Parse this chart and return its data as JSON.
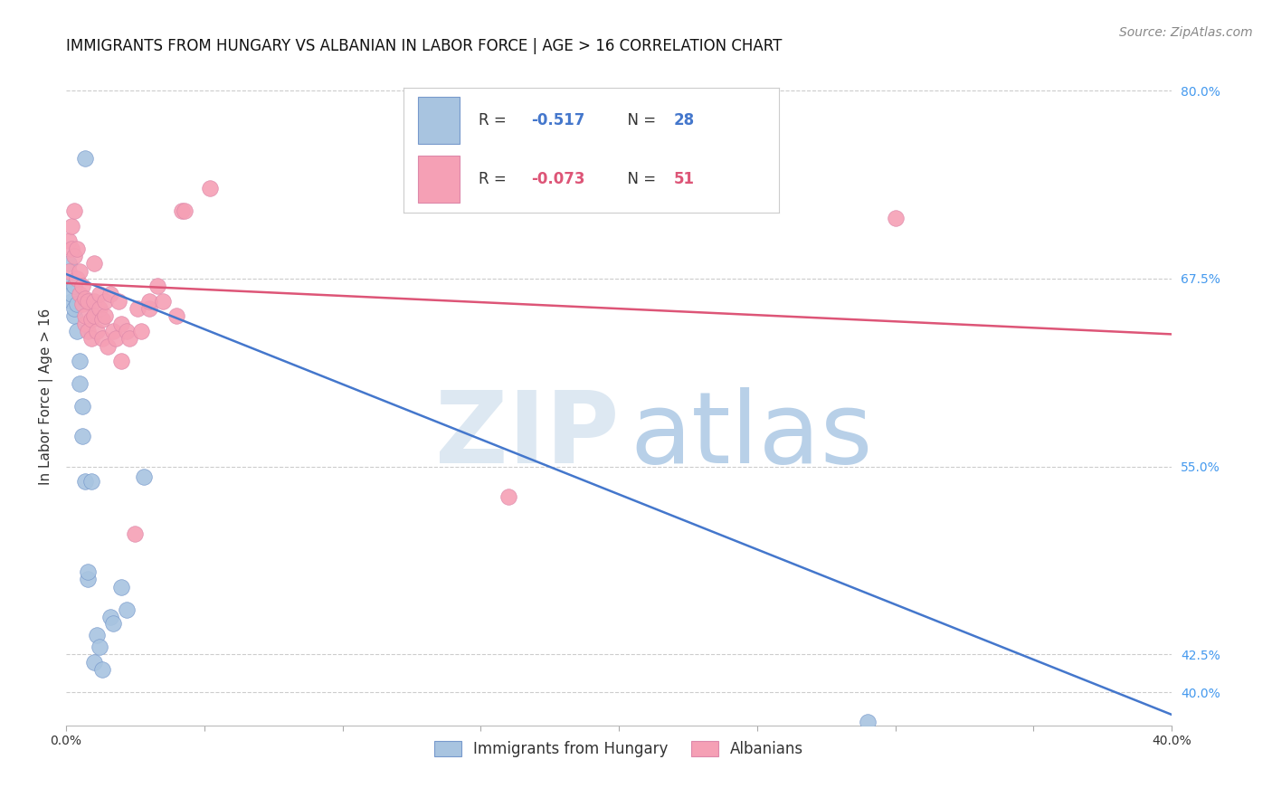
{
  "title": "IMMIGRANTS FROM HUNGARY VS ALBANIAN IN LABOR FORCE | AGE > 16 CORRELATION CHART",
  "source": "Source: ZipAtlas.com",
  "ylabel": "In Labor Force | Age > 16",
  "blue_R": "-0.517",
  "blue_N": "28",
  "pink_R": "-0.073",
  "pink_N": "51",
  "blue_color": "#a8c4e0",
  "pink_color": "#f5a0b5",
  "blue_line_color": "#4477cc",
  "pink_line_color": "#dd5577",
  "blue_edge_color": "#7799cc",
  "pink_edge_color": "#dd88aa",
  "legend_blue_label": "Immigrants from Hungary",
  "legend_pink_label": "Albanians",
  "blue_points_x": [
    0.001,
    0.001,
    0.002,
    0.002,
    0.003,
    0.003,
    0.003,
    0.004,
    0.004,
    0.005,
    0.005,
    0.006,
    0.006,
    0.007,
    0.008,
    0.008,
    0.009,
    0.01,
    0.011,
    0.012,
    0.013,
    0.016,
    0.017,
    0.02,
    0.022,
    0.028,
    0.29,
    0.007
  ],
  "blue_points_y": [
    0.685,
    0.672,
    0.66,
    0.665,
    0.65,
    0.655,
    0.67,
    0.658,
    0.64,
    0.62,
    0.605,
    0.59,
    0.57,
    0.54,
    0.475,
    0.48,
    0.54,
    0.42,
    0.438,
    0.43,
    0.415,
    0.45,
    0.446,
    0.47,
    0.455,
    0.543,
    0.38,
    0.755
  ],
  "pink_points_x": [
    0.001,
    0.001,
    0.002,
    0.002,
    0.003,
    0.003,
    0.004,
    0.004,
    0.005,
    0.005,
    0.006,
    0.006,
    0.007,
    0.007,
    0.007,
    0.008,
    0.008,
    0.009,
    0.009,
    0.01,
    0.01,
    0.01,
    0.011,
    0.012,
    0.012,
    0.013,
    0.013,
    0.014,
    0.014,
    0.015,
    0.016,
    0.017,
    0.018,
    0.019,
    0.02,
    0.02,
    0.022,
    0.023,
    0.025,
    0.026,
    0.027,
    0.03,
    0.03,
    0.033,
    0.035,
    0.04,
    0.042,
    0.043,
    0.052,
    0.3,
    0.16
  ],
  "pink_points_y": [
    0.68,
    0.7,
    0.695,
    0.71,
    0.69,
    0.72,
    0.675,
    0.695,
    0.665,
    0.68,
    0.658,
    0.67,
    0.645,
    0.662,
    0.65,
    0.64,
    0.66,
    0.635,
    0.648,
    0.66,
    0.685,
    0.65,
    0.64,
    0.655,
    0.665,
    0.648,
    0.635,
    0.65,
    0.66,
    0.63,
    0.665,
    0.64,
    0.635,
    0.66,
    0.62,
    0.645,
    0.64,
    0.635,
    0.505,
    0.655,
    0.64,
    0.655,
    0.66,
    0.67,
    0.66,
    0.65,
    0.72,
    0.72,
    0.735,
    0.715,
    0.53
  ],
  "blue_line_x": [
    0.0,
    0.4
  ],
  "blue_line_y": [
    0.678,
    0.385
  ],
  "pink_line_x": [
    0.0,
    0.4
  ],
  "pink_line_y": [
    0.672,
    0.638
  ],
  "xlim": [
    0.0,
    0.4
  ],
  "ylim": [
    0.378,
    0.815
  ],
  "ytick_vals": [
    0.4,
    0.425,
    0.55,
    0.675,
    0.8
  ],
  "ytick_labels": [
    "40.0%",
    "42.5%",
    "55.0%",
    "67.5%",
    "80.0%"
  ],
  "xtick_vals": [
    0.0,
    0.05,
    0.1,
    0.15,
    0.2,
    0.25,
    0.3,
    0.35,
    0.4
  ],
  "grid_color": "#cccccc",
  "background_color": "#ffffff",
  "title_fontsize": 12,
  "axis_label_fontsize": 11,
  "tick_fontsize": 10,
  "source_fontsize": 10,
  "ytick_color": "#4499ee",
  "xtick_color": "#333333"
}
